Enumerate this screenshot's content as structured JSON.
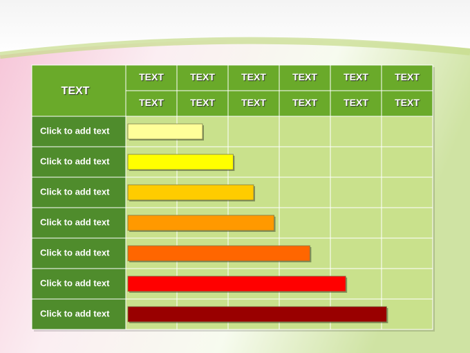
{
  "chart_data": {
    "type": "bar",
    "orientation": "horizontal",
    "title": "TEXT",
    "column_labels": [
      [
        "TEXT",
        "TEXT",
        "TEXT",
        "TEXT",
        "TEXT",
        "TEXT"
      ],
      [
        "TEXT",
        "TEXT",
        "TEXT",
        "TEXT",
        "TEXT",
        "TEXT"
      ]
    ],
    "categories": [
      "Click to add text",
      "Click to add text",
      "Click to add text",
      "Click to add text",
      "Click to add text",
      "Click to add text",
      "Click to add text"
    ],
    "values": [
      1.5,
      2.1,
      2.5,
      2.9,
      3.6,
      4.3,
      5.1
    ],
    "colors": [
      "#ffff99",
      "#ffff00",
      "#ffcc00",
      "#ff9900",
      "#ff6600",
      "#ff0000",
      "#990000"
    ],
    "xlim": [
      0,
      6
    ]
  }
}
